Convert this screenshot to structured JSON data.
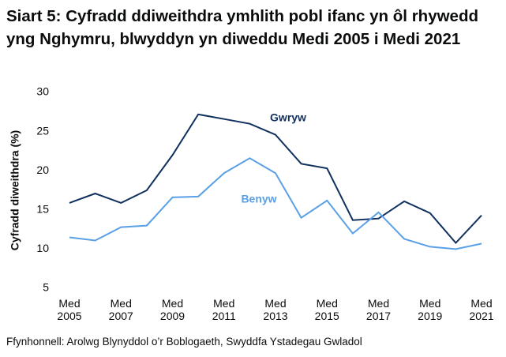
{
  "chart_data": {
    "type": "line",
    "title": "Siart 5: Cyfradd ddiweithdra ymhlith pobl ifanc yn ôl rhywedd yng Nghymru, blwyddyn yn diweddu Medi 2005 i Medi 2021",
    "y_label": "Cyfradd diweithdra (%)",
    "source": "Ffynhonnell: Arolwg Blynyddol o’r Boblogaeth, Swyddfa Ystadegau Gwladol",
    "categories": [
      "Med 2005",
      null,
      "Med 2007",
      null,
      "Med 2009",
      null,
      "Med 2011",
      null,
      "Med 2013",
      null,
      "Med 2015",
      null,
      "Med 2017",
      null,
      "Med 2019",
      null,
      "Med 2021"
    ],
    "series": [
      {
        "name": "Gwryw",
        "color": "#10305e",
        "values": [
          15.9,
          17.1,
          15.9,
          17.5,
          22.0,
          27.2,
          26.6,
          26.0,
          24.6,
          20.9,
          20.3,
          13.7,
          13.9,
          16.1,
          14.6,
          10.8,
          14.3
        ]
      },
      {
        "name": "Benyw",
        "color": "#5aa0e6",
        "values": [
          11.5,
          11.1,
          12.8,
          13.0,
          16.6,
          16.7,
          19.7,
          21.6,
          19.7,
          14.0,
          16.2,
          12.0,
          14.7,
          11.3,
          10.3,
          10.0,
          10.7
        ]
      }
    ],
    "ylim": [
      5,
      30
    ],
    "yticks": [
      5,
      10,
      15,
      20,
      25,
      30
    ],
    "grid": false
  }
}
